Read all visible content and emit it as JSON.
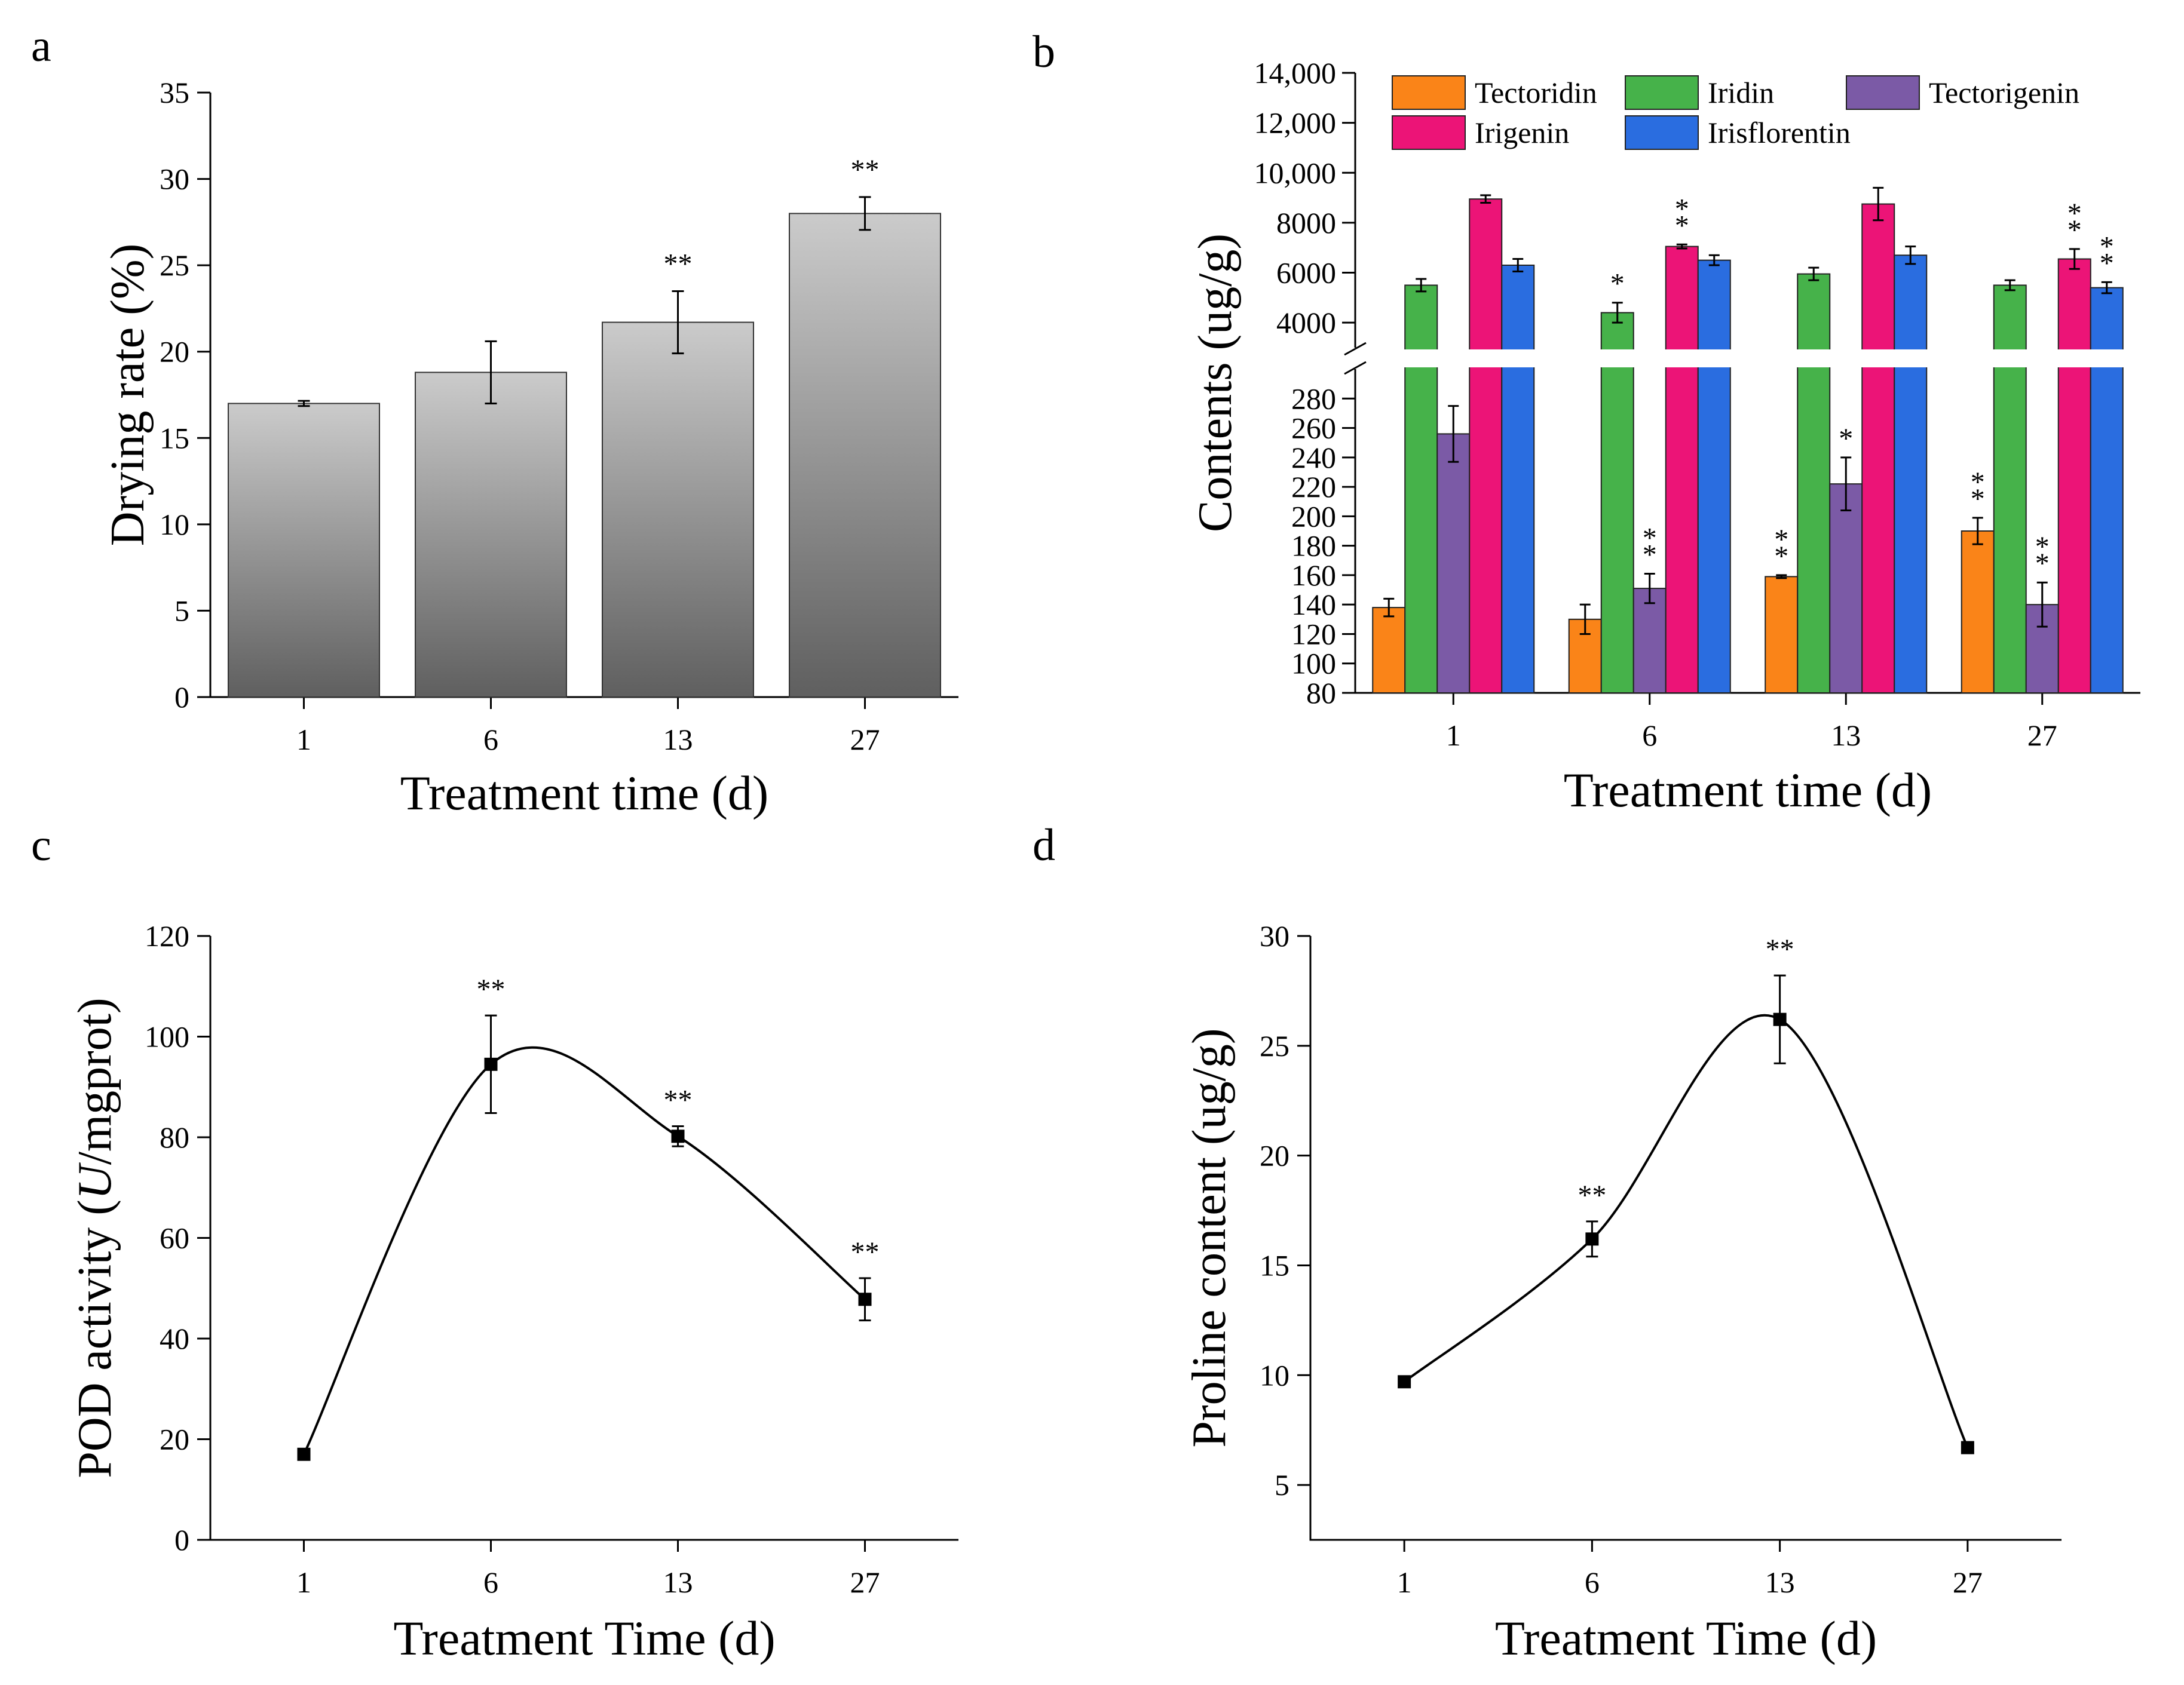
{
  "figure": {
    "panels": [
      "a",
      "b",
      "c",
      "d"
    ]
  },
  "chart_data": [
    {
      "id": "a",
      "type": "bar",
      "title": "",
      "xlabel": "Treatment time (d)",
      "ylabel": "Drying rate (%)",
      "categories": [
        "1",
        "6",
        "13",
        "27"
      ],
      "values": [
        17.0,
        18.8,
        21.7,
        28.0
      ],
      "errors": [
        0.15,
        1.8,
        1.8,
        0.95
      ],
      "significance": [
        "",
        "",
        "**",
        "**"
      ],
      "ylim": [
        0,
        35
      ],
      "yticks": [
        0,
        5,
        10,
        15,
        20,
        25,
        30,
        35
      ],
      "colors": {
        "bar_top": "#cbcbcb",
        "bar_bottom": "#5f5f5f"
      }
    },
    {
      "id": "b",
      "type": "bar",
      "title": "",
      "xlabel": "Treatment time (d)",
      "ylabel": "Contents (ug/g)",
      "categories": [
        "1",
        "6",
        "13",
        "27"
      ],
      "axis_break": {
        "lower_range": [
          80,
          300
        ],
        "upper_range": [
          3000,
          14000
        ]
      },
      "lower_yticks": [
        80,
        100,
        120,
        140,
        160,
        180,
        200,
        220,
        240,
        260,
        280
      ],
      "upper_yticks": [
        4000,
        6000,
        8000,
        10000,
        12000,
        14000
      ],
      "upper_tick_labels": [
        "4000",
        "6000",
        "8000",
        "10,000",
        "12,000",
        "14,000"
      ],
      "series": [
        {
          "name": "Tectoridin",
          "color": "#fa8418",
          "values": [
            138,
            130,
            159,
            190
          ],
          "errors": [
            6,
            10,
            1,
            9
          ],
          "significance": [
            "",
            "",
            "**",
            "**"
          ]
        },
        {
          "name": "Iridin",
          "color": "#46b24a",
          "values": [
            5500,
            4400,
            5950,
            5500
          ],
          "errors": [
            250,
            400,
            250,
            200
          ],
          "significance": [
            "",
            "*",
            "",
            ""
          ]
        },
        {
          "name": "Tectorigenin",
          "color": "#7b5aa6",
          "values": [
            256,
            151,
            222,
            140
          ],
          "errors": [
            19,
            10,
            18,
            15
          ],
          "significance": [
            "",
            "**",
            "*",
            "**"
          ]
        },
        {
          "name": "Irigenin",
          "color": "#ec1477",
          "values": [
            8950,
            7050,
            8750,
            6550
          ],
          "errors": [
            150,
            80,
            650,
            400
          ],
          "significance": [
            "",
            "**",
            "",
            "**"
          ]
        },
        {
          "name": "Irisflorentin",
          "color": "#2a6de0",
          "values": [
            6300,
            6500,
            6700,
            5400
          ],
          "errors": [
            250,
            200,
            350,
            220
          ],
          "significance": [
            "",
            "",
            "",
            "**"
          ]
        }
      ]
    },
    {
      "id": "c",
      "type": "line",
      "title": "",
      "xlabel": "Treatment Time (d)",
      "ylabel": "POD activity (U/mgprot)",
      "ylabel_parts": [
        "POD activity (",
        "U",
        "/mgprot)"
      ],
      "categories": [
        "1",
        "6",
        "13",
        "27"
      ],
      "values": [
        17.0,
        94.5,
        80.2,
        47.8
      ],
      "errors": [
        0.8,
        9.7,
        2.0,
        4.2
      ],
      "significance": [
        "",
        "**",
        "**",
        "**"
      ],
      "ylim": [
        0,
        120
      ],
      "yticks": [
        0,
        20,
        40,
        60,
        80,
        100,
        120
      ]
    },
    {
      "id": "d",
      "type": "line",
      "title": "",
      "xlabel": "Treatment Time (d)",
      "ylabel": "Proline content (ug/g)",
      "categories": [
        "1",
        "6",
        "13",
        "27"
      ],
      "values": [
        9.7,
        16.2,
        26.2,
        6.7
      ],
      "errors": [
        0.15,
        0.8,
        2.0,
        0.25
      ],
      "significance": [
        "",
        "**",
        "**",
        ""
      ],
      "ylim": [
        2.5,
        30
      ],
      "yticks": [
        5,
        10,
        15,
        20,
        25,
        30
      ]
    }
  ]
}
